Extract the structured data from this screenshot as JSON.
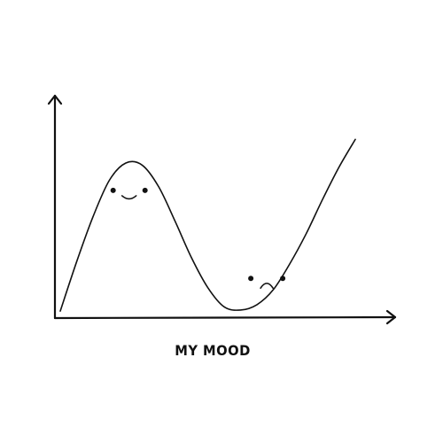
{
  "chart_data": {
    "type": "line",
    "title": "",
    "xlabel": "MY MOOD",
    "ylabel": "",
    "grid": false,
    "legend": "none",
    "tick_labels": false,
    "colors": {
      "ink": "#111111",
      "background": "#ffffff"
    },
    "xlim": [
      0,
      10
    ],
    "ylim": [
      0,
      10
    ],
    "series": [
      {
        "x": [
          0,
          0.5,
          1,
          1.5,
          2,
          2.5,
          3,
          3.5,
          4,
          4.5,
          5,
          5.5,
          6,
          6.5,
          7,
          7.5,
          8,
          8.5,
          9
        ],
        "values": [
          0.2,
          2.5,
          4.6,
          6.3,
          7.1,
          7.0,
          6.0,
          4.4,
          2.7,
          1.3,
          0.4,
          0.25,
          0.5,
          1.2,
          2.4,
          3.8,
          5.4,
          6.9,
          8.2
        ]
      }
    ],
    "annotations": [
      {
        "type": "happy-face",
        "x": 2.1,
        "y": 5.7
      },
      {
        "type": "sad-face",
        "x": 6.3,
        "y": 1.6
      }
    ]
  }
}
